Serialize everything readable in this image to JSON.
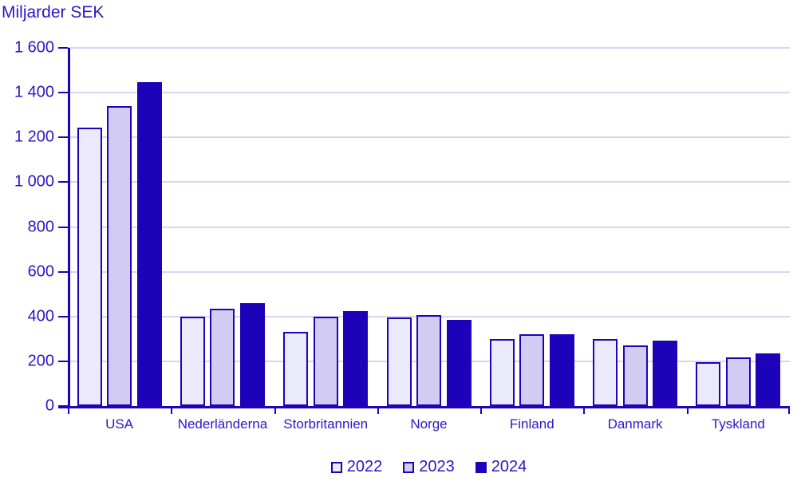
{
  "chart_data": {
    "type": "bar",
    "title": "Miljarder SEK",
    "categories": [
      "USA",
      "Nederländerna",
      "Storbritannien",
      "Norge",
      "Finland",
      "Danmark",
      "Tyskland"
    ],
    "series": [
      {
        "name": "2022",
        "values": [
          1245,
          400,
          330,
          395,
          300,
          300,
          196
        ]
      },
      {
        "name": "2023",
        "values": [
          1340,
          435,
          400,
          405,
          320,
          270,
          219
        ]
      },
      {
        "name": "2024",
        "values": [
          1445,
          460,
          425,
          385,
          322,
          293,
          236
        ]
      }
    ],
    "ylim": [
      0,
      1600
    ],
    "yticks": [
      0,
      200,
      400,
      600,
      800,
      1000,
      1200,
      1400,
      1600
    ],
    "ytick_labels": [
      "0",
      "200",
      "400",
      "600",
      "800",
      "1 000",
      "1 200",
      "1 400",
      "1 600"
    ],
    "xlabel": "",
    "ylabel": "Miljarder SEK",
    "grid": true,
    "legend_position": "bottom",
    "colors": {
      "series_2022": "#ebeafb",
      "series_2023": "#d2ccf2",
      "series_2024": "#1c02b8",
      "bar_border": "#2002b8",
      "gridline": "#d9d6f2",
      "axis": "#2002b8",
      "text": "#2d16c8"
    }
  }
}
